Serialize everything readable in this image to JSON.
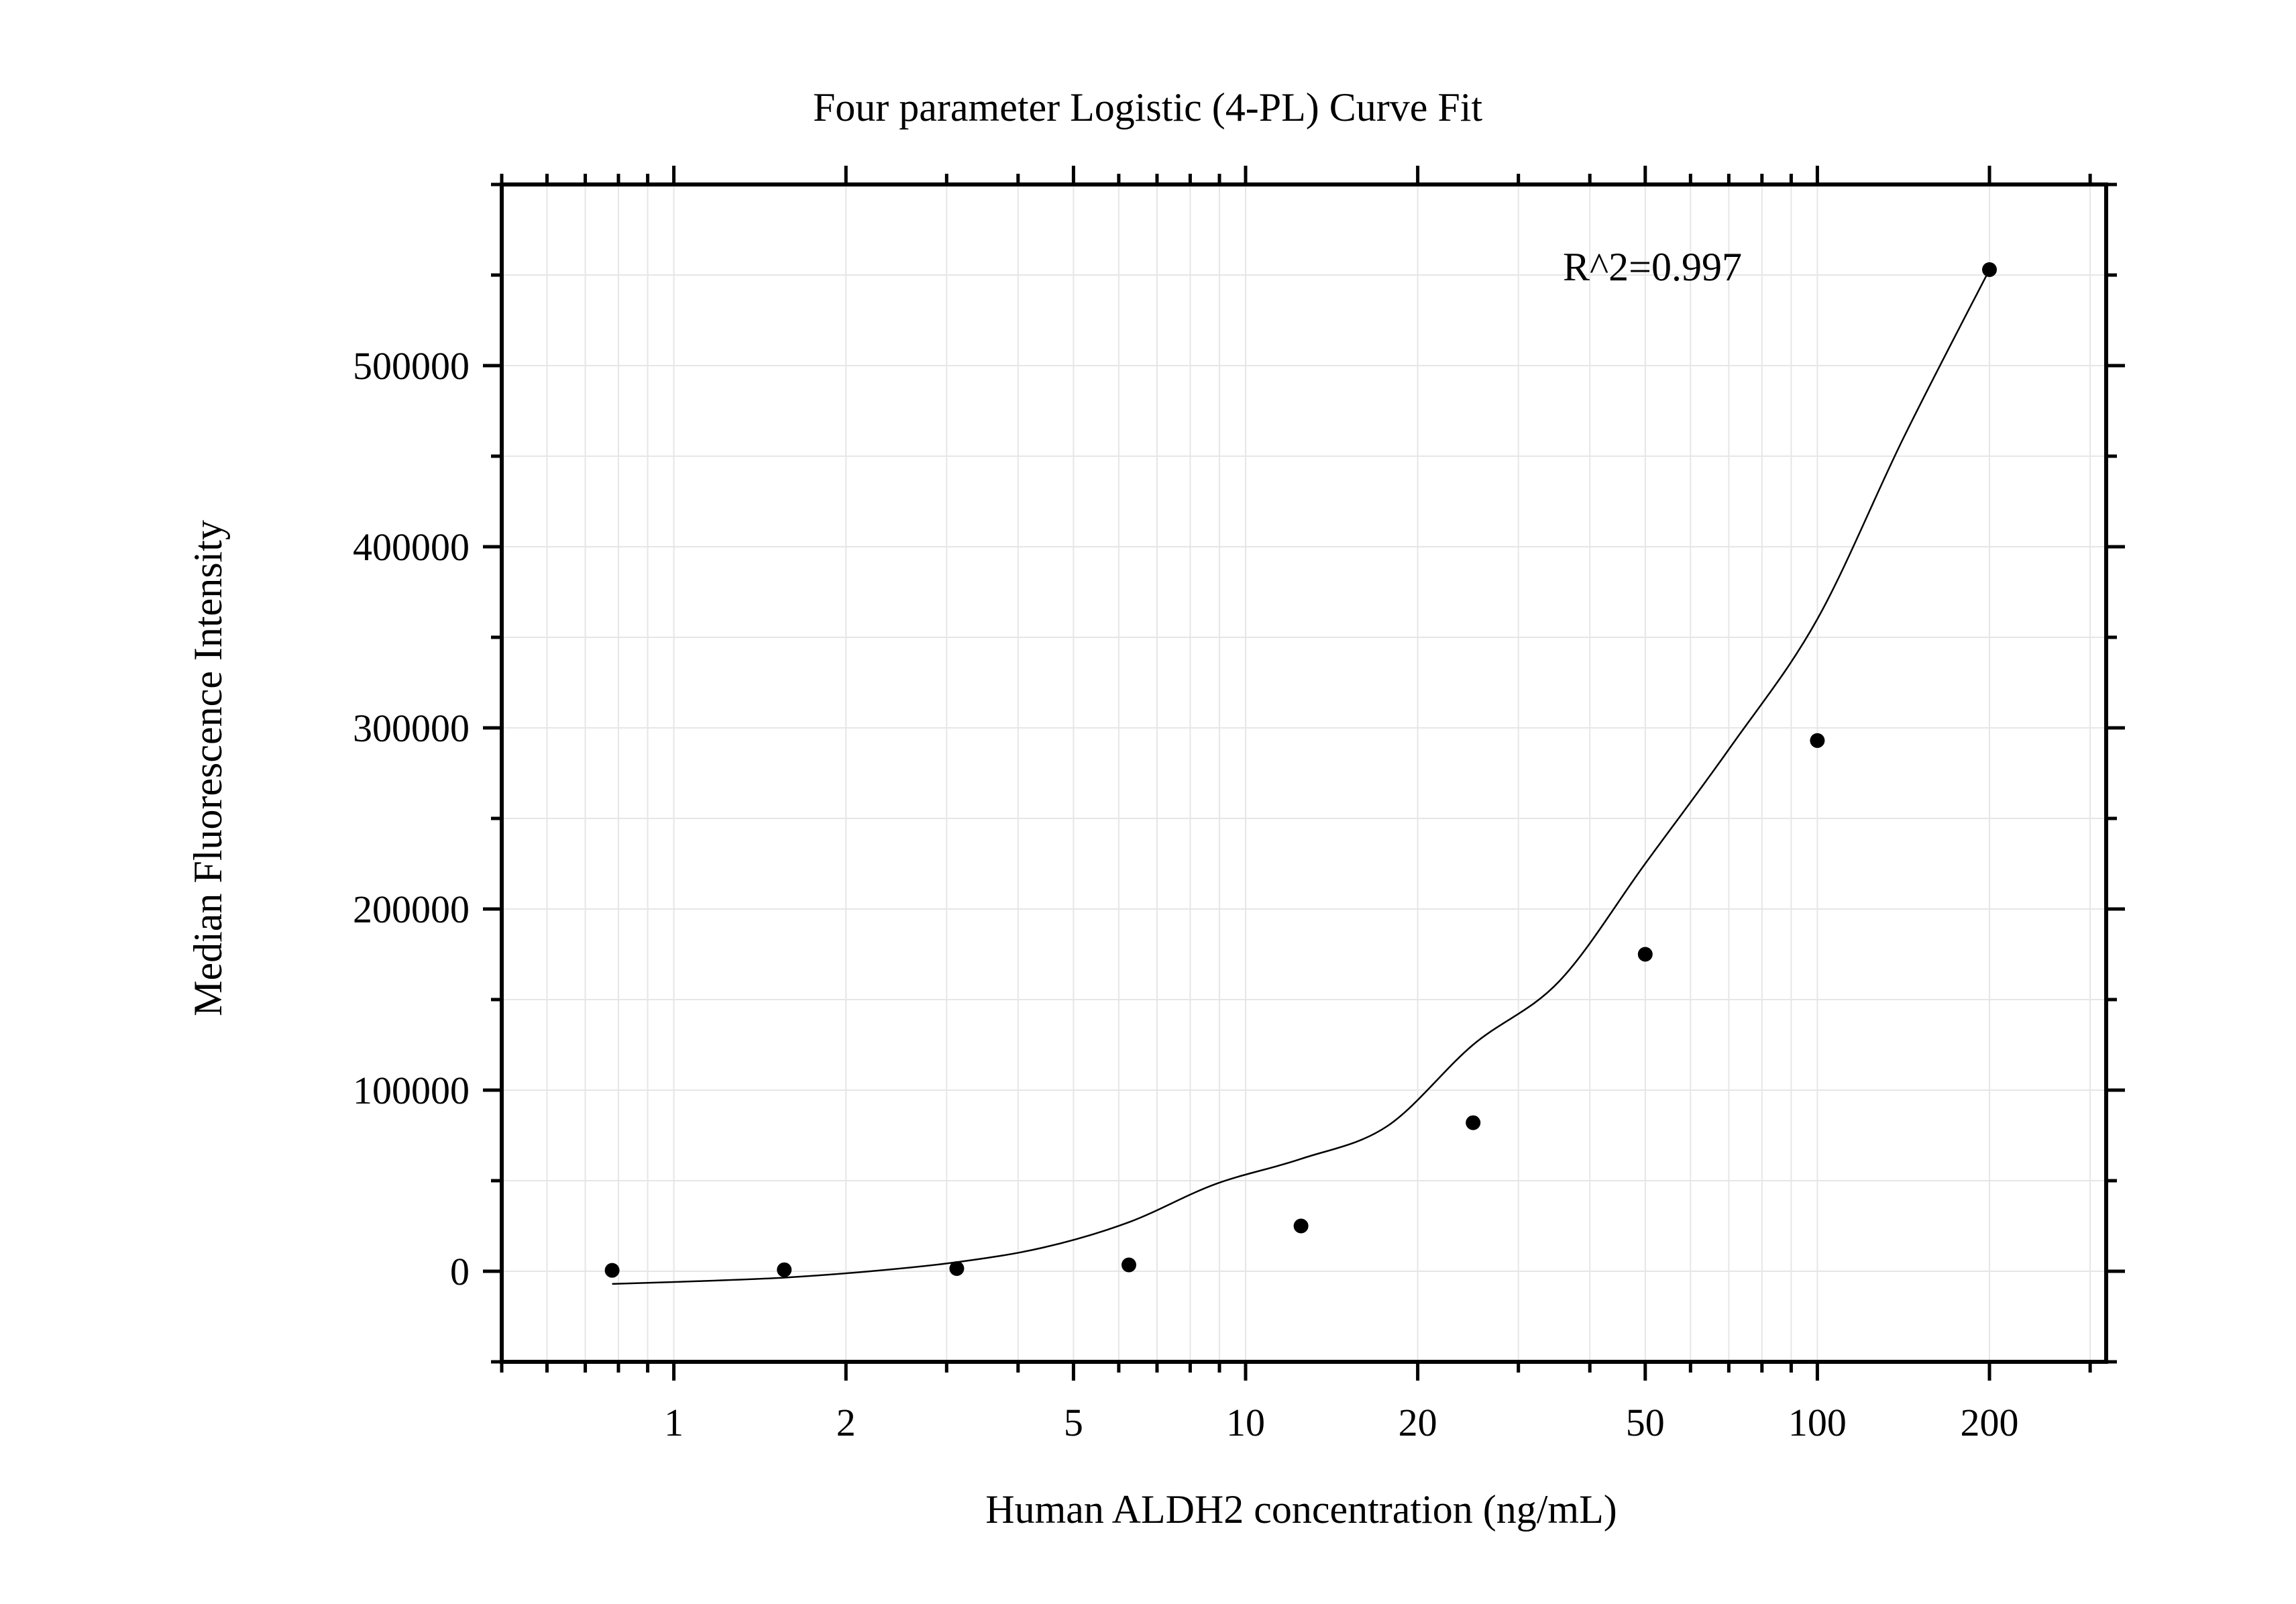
{
  "chart_data": {
    "type": "scatter",
    "title": "Four parameter Logistic (4-PL) Curve Fit",
    "xlabel": "Human ALDH2 concentration (ng/mL)",
    "ylabel": "Median Fluorescence Intensity",
    "x_scale": "log",
    "xlim": [
      0.5,
      320
    ],
    "ylim": [
      -50000,
      600000
    ],
    "x_major_ticks": [
      1,
      2,
      5,
      10,
      20,
      50,
      100,
      200
    ],
    "x_tick_labels": [
      "1",
      "2",
      "5",
      "10",
      "20",
      "50",
      "100",
      "200"
    ],
    "y_major_ticks": [
      0,
      100000,
      200000,
      300000,
      400000,
      500000
    ],
    "y_tick_labels": [
      "0",
      "100000",
      "200000",
      "300000",
      "400000",
      "500000"
    ],
    "grid": true,
    "annotation": "R^2=0.997",
    "points": [
      {
        "x": 0.78,
        "y": 500
      },
      {
        "x": 1.56,
        "y": 800
      },
      {
        "x": 3.125,
        "y": 1500
      },
      {
        "x": 6.25,
        "y": 3500
      },
      {
        "x": 12.5,
        "y": 25000
      },
      {
        "x": 25,
        "y": 82000
      },
      {
        "x": 50,
        "y": 175000
      },
      {
        "x": 100,
        "y": 293000
      },
      {
        "x": 200,
        "y": 553000
      }
    ],
    "fit": {
      "model": "4-PL",
      "x_range": [
        0.78,
        200
      ],
      "y": [
        -7000,
        -5500,
        -3500,
        0,
        5000,
        13000,
        27000,
        48000,
        62000,
        80000,
        125000,
        160000,
        225000,
        290000,
        360000,
        460000,
        553000
      ]
    }
  }
}
